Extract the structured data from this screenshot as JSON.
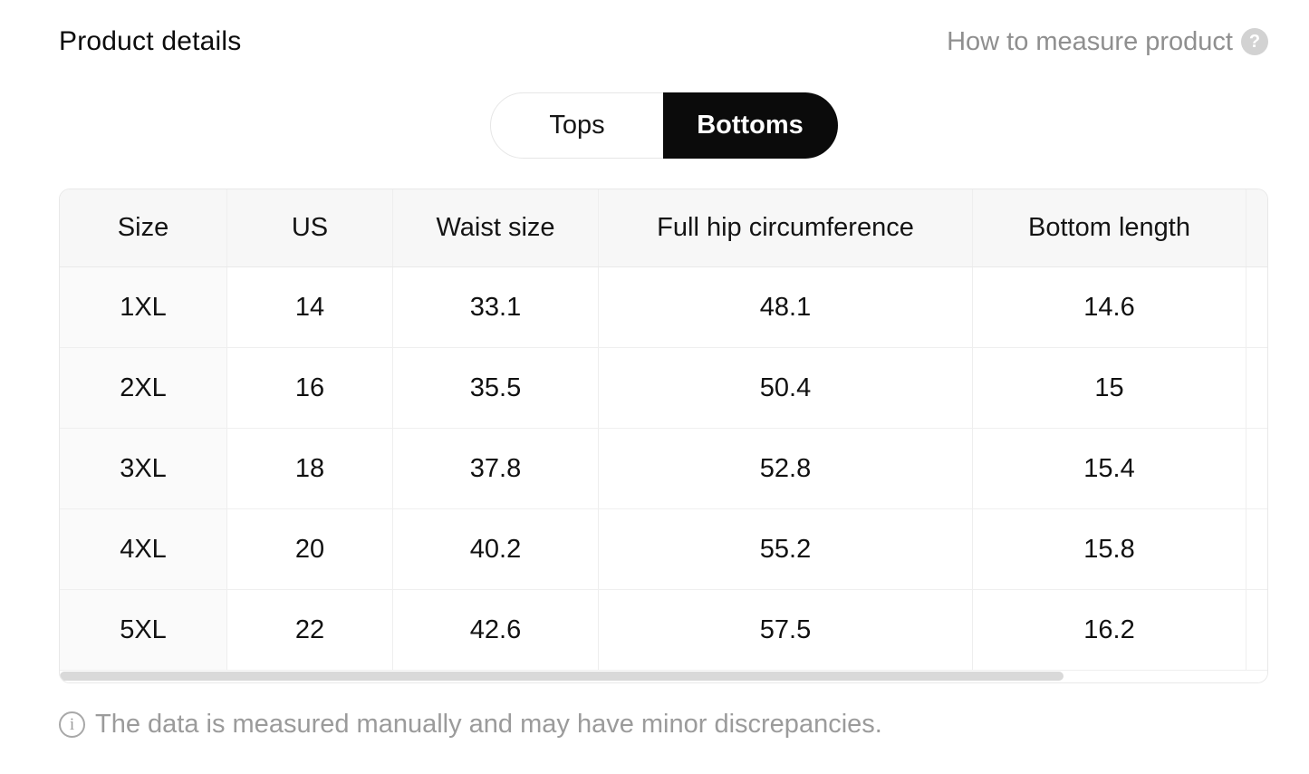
{
  "header": {
    "title": "Product details",
    "measure_link": {
      "label": "How to measure product",
      "icon_glyph": "?"
    }
  },
  "toggle": {
    "options": [
      {
        "label": "Tops",
        "selected": false
      },
      {
        "label": "Bottoms",
        "selected": true
      }
    ]
  },
  "size_table": {
    "columns": [
      "Size",
      "US",
      "Waist size",
      "Full hip circumference",
      "Bottom length"
    ],
    "rows": [
      [
        "1XL",
        "14",
        "33.1",
        "48.1",
        "14.6"
      ],
      [
        "2XL",
        "16",
        "35.5",
        "50.4",
        "15"
      ],
      [
        "3XL",
        "18",
        "37.8",
        "52.8",
        "15.4"
      ],
      [
        "4XL",
        "20",
        "40.2",
        "55.2",
        "15.8"
      ],
      [
        "5XL",
        "22",
        "42.6",
        "57.5",
        "16.2"
      ]
    ]
  },
  "footer": {
    "icon_glyph": "i",
    "note": "The data is measured manually and may have minor discrepancies."
  },
  "colors": {
    "selected_tab_bg": "#0b0b0b",
    "selected_tab_text": "#ffffff",
    "table_header_bg": "#f7f7f7",
    "sticky_col_bg": "#fafafa",
    "border": "#e8e8e8",
    "muted_text": "#9b9b9b",
    "help_icon_bg": "#d2d2d2",
    "scroll_thumb": "#d9d9d9"
  }
}
